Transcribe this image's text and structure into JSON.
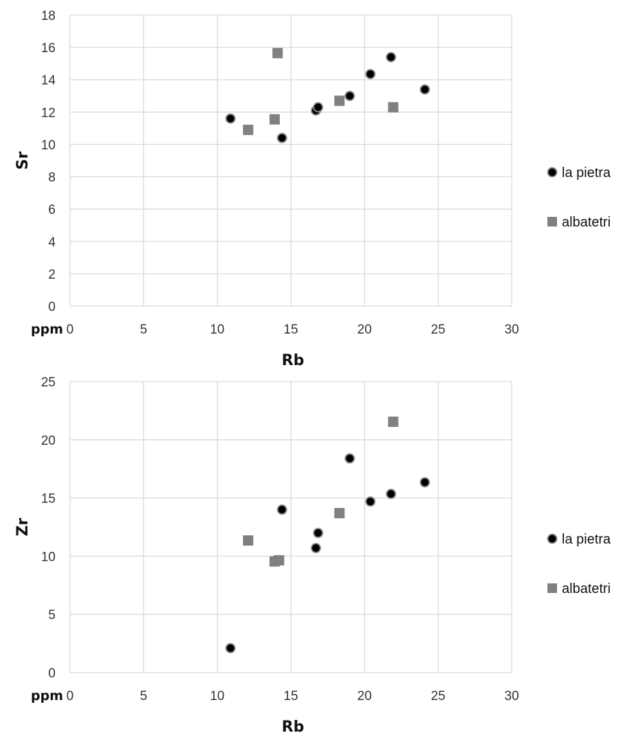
{
  "chart_data": [
    {
      "type": "scatter",
      "title": "",
      "xlabel": "Rb",
      "ylabel": "Sr",
      "unit_label": "ppm",
      "xlim": [
        0,
        30
      ],
      "ylim": [
        0,
        18
      ],
      "xticks": [
        0,
        5,
        10,
        15,
        20,
        25,
        30
      ],
      "yticks": [
        0,
        2,
        4,
        6,
        8,
        10,
        12,
        14,
        16,
        18
      ],
      "grid": true,
      "legend_position": "right",
      "series": [
        {
          "name": "la pietra",
          "marker": "circle",
          "color": "#000000",
          "points": [
            {
              "x": 10.9,
              "y": 11.6
            },
            {
              "x": 14.4,
              "y": 10.4
            },
            {
              "x": 16.7,
              "y": 12.1
            },
            {
              "x": 16.85,
              "y": 12.3
            },
            {
              "x": 19.0,
              "y": 13.0
            },
            {
              "x": 20.4,
              "y": 14.35
            },
            {
              "x": 21.8,
              "y": 15.4
            },
            {
              "x": 24.1,
              "y": 13.4
            }
          ]
        },
        {
          "name": "albatetri",
          "marker": "square",
          "color": "#808080",
          "points": [
            {
              "x": 12.1,
              "y": 10.9
            },
            {
              "x": 13.9,
              "y": 11.55
            },
            {
              "x": 14.1,
              "y": 15.65
            },
            {
              "x": 18.3,
              "y": 12.7
            },
            {
              "x": 21.95,
              "y": 12.3
            }
          ]
        }
      ]
    },
    {
      "type": "scatter",
      "title": "",
      "xlabel": "Rb",
      "ylabel": "Zr",
      "unit_label": "ppm",
      "xlim": [
        0,
        30
      ],
      "ylim": [
        0,
        25
      ],
      "xticks": [
        0,
        5,
        10,
        15,
        20,
        25,
        30
      ],
      "yticks": [
        0,
        5,
        10,
        15,
        20,
        25
      ],
      "grid": true,
      "legend_position": "right",
      "series": [
        {
          "name": "la pietra",
          "marker": "circle",
          "color": "#000000",
          "points": [
            {
              "x": 10.9,
              "y": 2.1
            },
            {
              "x": 14.4,
              "y": 14.0
            },
            {
              "x": 16.7,
              "y": 10.7
            },
            {
              "x": 16.85,
              "y": 12.0
            },
            {
              "x": 19.0,
              "y": 18.4
            },
            {
              "x": 20.4,
              "y": 14.7
            },
            {
              "x": 21.8,
              "y": 15.35
            },
            {
              "x": 24.1,
              "y": 16.35
            }
          ]
        },
        {
          "name": "albatetri",
          "marker": "square",
          "color": "#808080",
          "points": [
            {
              "x": 12.1,
              "y": 11.35
            },
            {
              "x": 13.9,
              "y": 9.55
            },
            {
              "x": 14.2,
              "y": 9.65
            },
            {
              "x": 18.3,
              "y": 13.7
            },
            {
              "x": 21.95,
              "y": 21.55
            }
          ]
        }
      ]
    }
  ]
}
